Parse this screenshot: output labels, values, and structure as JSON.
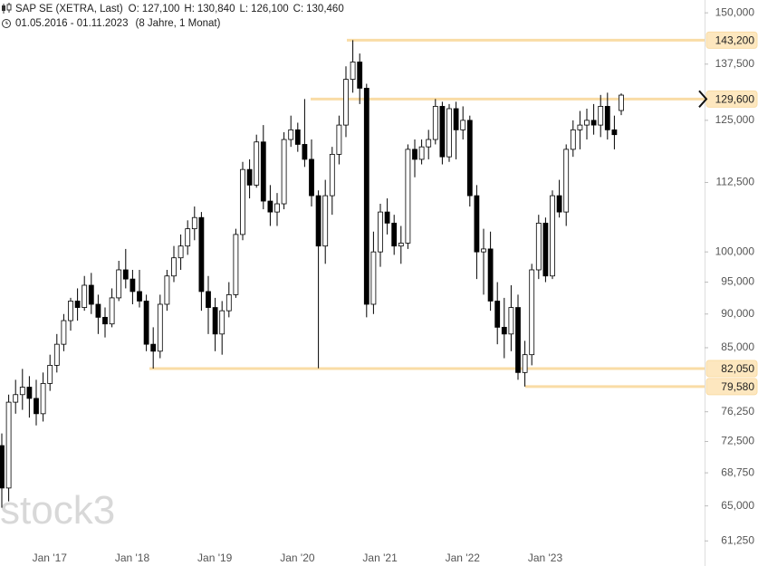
{
  "chart_data": {
    "type": "candlestick",
    "title": "SAP SE (XETRA, Last)",
    "readout": [
      {
        "name": "O:",
        "value": 127.1,
        "label": "127,100"
      },
      {
        "name": "H:",
        "value": 130.84,
        "label": "130,840"
      },
      {
        "name": "L:",
        "value": 126.1,
        "label": "126,100"
      },
      {
        "name": "C:",
        "value": 130.46,
        "label": "130,460"
      }
    ],
    "date_range": "01.05.2016 - 01.11.2023",
    "period": "(8 Jahre, 1 Monat)",
    "watermark": "stock3",
    "log_scale": true,
    "up_color": "#ffffff",
    "down_color": "#000000",
    "level_color": "#f9dca6",
    "ylim": [
      58.7,
      153.3
    ],
    "yticks": [
      {
        "value": 61.25,
        "label": "61,250"
      },
      {
        "value": 65,
        "label": "65,000"
      },
      {
        "value": 68.75,
        "label": "68,750"
      },
      {
        "value": 72.5,
        "label": "72,500"
      },
      {
        "value": 76.25,
        "label": "76,250"
      },
      {
        "value": 85,
        "label": "85,000"
      },
      {
        "value": 90,
        "label": "90,000"
      },
      {
        "value": 95,
        "label": "95,000"
      },
      {
        "value": 100,
        "label": "100,000"
      },
      {
        "value": 112.5,
        "label": "112,500"
      },
      {
        "value": 125,
        "label": "125,000"
      },
      {
        "value": 137.5,
        "label": "137,500"
      },
      {
        "value": 150,
        "label": "150,000"
      }
    ],
    "levels": [
      {
        "value": 143.2,
        "label": "143,200"
      },
      {
        "value": 129.6,
        "label": "129,600"
      },
      {
        "value": 82.05,
        "label": "82,050"
      },
      {
        "value": 79.58,
        "label": "79,580"
      }
    ],
    "categories": [
      null,
      null,
      null,
      null,
      null,
      null,
      null,
      null,
      "Jan '17",
      null,
      null,
      null,
      null,
      null,
      null,
      null,
      null,
      null,
      null,
      null,
      "Jan '18",
      null,
      null,
      null,
      null,
      null,
      null,
      null,
      null,
      null,
      null,
      null,
      "Jan '19",
      null,
      null,
      null,
      null,
      null,
      null,
      null,
      null,
      null,
      null,
      null,
      "Jan '20",
      null,
      null,
      null,
      null,
      null,
      null,
      null,
      null,
      null,
      null,
      null,
      "Jan '21",
      null,
      null,
      null,
      null,
      null,
      null,
      null,
      null,
      null,
      null,
      null,
      "Jan '22",
      null,
      null,
      null,
      null,
      null,
      null,
      null,
      null,
      null,
      null,
      null,
      "Jan '23",
      null,
      null,
      null,
      null,
      null,
      null,
      null,
      null,
      null,
      null
    ],
    "open": [
      72.0,
      67.0,
      77.5,
      78.5,
      79.5,
      78.0,
      76.0,
      80.0,
      82.5,
      85.5,
      89.0,
      92.0,
      91.0,
      94.5,
      91.5,
      89.5,
      88.5,
      92.5,
      97.0,
      95.5,
      93.5,
      92.0,
      85.5,
      84.5,
      91.5,
      96.0,
      99.0,
      101.0,
      104.0,
      106.0,
      93.5,
      91.0,
      87.0,
      90.5,
      93.0,
      103.0,
      115.0,
      112.0,
      120.5,
      109.0,
      107.0,
      108.5,
      121.0,
      123.0,
      120.0,
      117.0,
      110.0,
      101.0,
      110.0,
      118.0,
      124.0,
      134.0,
      138.0,
      132.0,
      91.5,
      100.0,
      107.0,
      105.0,
      101.0,
      101.5,
      119.0,
      117.0,
      119.5,
      121.0,
      128.0,
      117.5,
      127.5,
      123.0,
      125.0,
      110.0,
      100.0,
      100.5,
      92.0,
      88.0,
      87.0,
      91.0,
      81.5,
      84.0,
      97.0,
      105.0,
      96.0,
      110.0,
      107.0,
      119.0,
      123.0,
      124.0,
      125.0,
      124.0,
      128.0,
      123.0,
      127.1
    ],
    "high": [
      73.5,
      78.5,
      80.5,
      82.0,
      81.0,
      80.5,
      81.5,
      84.0,
      87.0,
      90.0,
      92.5,
      94.0,
      96.0,
      96.5,
      93.0,
      91.0,
      94.0,
      98.5,
      100.5,
      97.0,
      97.0,
      93.0,
      88.0,
      93.0,
      97.0,
      101.0,
      103.0,
      105.5,
      108.0,
      107.0,
      96.0,
      92.5,
      92.0,
      95.0,
      104.0,
      116.5,
      117.0,
      122.0,
      124.0,
      112.0,
      110.5,
      122.5,
      126.0,
      124.5,
      129.6,
      121.0,
      111.0,
      113.0,
      119.5,
      126.0,
      137.0,
      143.2,
      140.0,
      133.0,
      103.5,
      108.5,
      109.5,
      106.5,
      104.5,
      120.0,
      121.0,
      121.0,
      123.0,
      129.6,
      129.0,
      128.5,
      129.0,
      128.0,
      126.0,
      112.0,
      104.0,
      103.5,
      95.0,
      92.5,
      94.5,
      93.0,
      86.0,
      98.0,
      106.5,
      106.0,
      111.0,
      113.0,
      120.0,
      125.0,
      127.0,
      127.5,
      128.5,
      130.5,
      131.0,
      126.0,
      130.84
    ],
    "low": [
      64.8,
      65.5,
      76.0,
      76.5,
      75.5,
      74.5,
      75.0,
      79.0,
      81.5,
      84.5,
      87.5,
      89.0,
      90.5,
      90.0,
      87.0,
      86.5,
      88.0,
      92.0,
      94.0,
      91.5,
      91.0,
      84.5,
      82.05,
      83.5,
      90.5,
      95.0,
      97.0,
      99.5,
      102.0,
      90.5,
      87.0,
      84.5,
      84.0,
      89.5,
      92.5,
      102.0,
      109.5,
      111.5,
      107.5,
      104.5,
      104.5,
      107.5,
      119.5,
      118.5,
      115.5,
      108.0,
      82.1,
      98.0,
      106.5,
      116.0,
      121.5,
      131.0,
      128.5,
      89.5,
      90.0,
      97.5,
      103.0,
      99.5,
      98.0,
      100.5,
      113.5,
      116.0,
      117.0,
      120.0,
      116.0,
      116.5,
      117.0,
      121.0,
      108.0,
      95.5,
      93.0,
      90.5,
      85.5,
      83.5,
      84.5,
      80.5,
      79.58,
      82.5,
      95.5,
      95.0,
      95.5,
      106.0,
      104.5,
      117.5,
      119.0,
      121.0,
      122.0,
      121.5,
      121.0,
      119.0,
      126.1
    ],
    "close": [
      67.0,
      77.5,
      78.5,
      79.5,
      78.0,
      76.0,
      80.0,
      82.5,
      85.5,
      89.0,
      92.0,
      91.0,
      94.5,
      91.5,
      89.5,
      88.5,
      92.5,
      97.0,
      95.5,
      93.5,
      92.0,
      85.5,
      84.5,
      91.5,
      96.0,
      99.0,
      101.0,
      104.0,
      106.0,
      93.5,
      91.0,
      87.0,
      90.5,
      93.0,
      103.0,
      115.0,
      112.0,
      120.5,
      109.0,
      107.0,
      108.5,
      121.0,
      123.0,
      120.0,
      117.0,
      110.0,
      101.0,
      110.0,
      118.0,
      124.0,
      134.0,
      138.0,
      132.0,
      91.5,
      100.0,
      107.0,
      105.0,
      101.0,
      101.5,
      119.0,
      117.0,
      119.5,
      121.0,
      128.0,
      117.5,
      127.5,
      123.0,
      125.0,
      110.0,
      100.0,
      100.5,
      92.0,
      88.0,
      87.0,
      91.0,
      81.5,
      84.0,
      97.0,
      105.0,
      96.0,
      110.0,
      107.0,
      119.0,
      123.0,
      124.0,
      125.0,
      124.0,
      128.0,
      123.0,
      122.0,
      130.46
    ]
  }
}
